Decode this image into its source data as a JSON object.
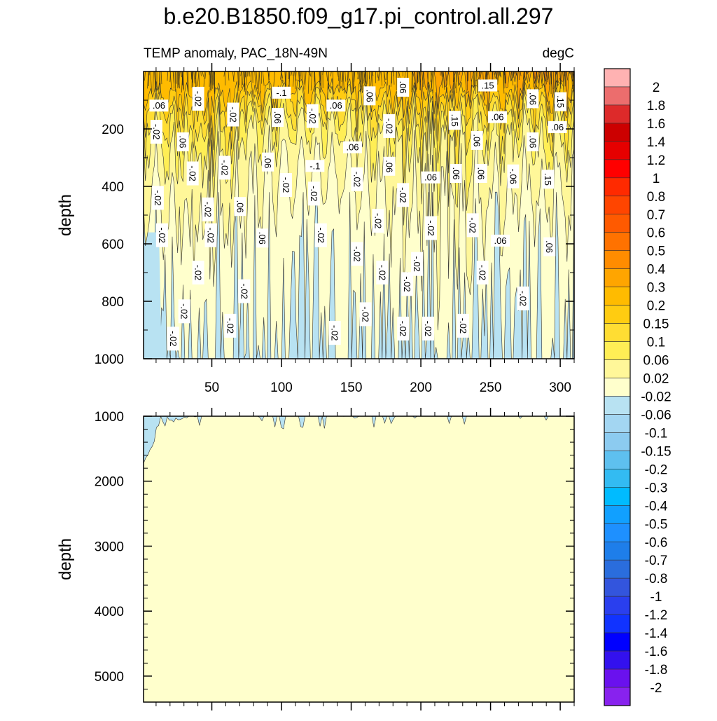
{
  "chart_data": {
    "type": "contour",
    "title": "b.e20.B1850.f09_g17.pi_control.all.297",
    "subtitle_left": "TEMP anomaly, PAC_18N-49N",
    "subtitle_right": "degC",
    "xlabel": "",
    "ylabel": "depth",
    "xlim": [
      1,
      310
    ],
    "x_ticks": [
      50,
      100,
      150,
      200,
      250,
      300
    ],
    "panels": [
      {
        "name": "upper",
        "ylim": [
          0,
          1000
        ],
        "y_ticks": [
          200,
          400,
          600,
          800,
          1000
        ],
        "y_inverted": true,
        "show_x_tick_labels": true
      },
      {
        "name": "lower",
        "ylim": [
          1000,
          5400
        ],
        "y_ticks": [
          1000,
          2000,
          3000,
          4000,
          5000
        ],
        "y_inverted": true,
        "show_x_tick_labels": false
      }
    ],
    "colorbar": {
      "levels": [
        "2",
        "1.8",
        "1.6",
        "1.4",
        "1.2",
        "1",
        "0.8",
        "0.7",
        "0.6",
        "0.5",
        "0.4",
        "0.3",
        "0.2",
        "0.15",
        "0.1",
        "0.06",
        "0.02",
        "-0.02",
        "-0.06",
        "-0.1",
        "-0.15",
        "-0.2",
        "-0.3",
        "-0.4",
        "-0.5",
        "-0.6",
        "-0.7",
        "-0.8",
        "-1",
        "-1.2",
        "-1.4",
        "-1.6",
        "-1.8",
        "-2"
      ],
      "colors": [
        "#ffb2b2",
        "#ec6d6d",
        "#dd2a2a",
        "#cc0000",
        "#e60000",
        "#ff0000",
        "#ff2a00",
        "#ff4500",
        "#ff5a00",
        "#ff7200",
        "#ff8c00",
        "#ffa500",
        "#ffbb00",
        "#ffcc11",
        "#ffdd33",
        "#ffee55",
        "#fff799",
        "#ffffcc",
        "#b8e2f2",
        "#a3d6f2",
        "#8ccbf0",
        "#5ec0ef",
        "#33bbf2",
        "#00bbff",
        "#11a0ff",
        "#1e90ff",
        "#1e7eea",
        "#2a6ddd",
        "#3355dd",
        "#2a3fee",
        "#1133ff",
        "#0000ff",
        "#3311ee",
        "#6a11ee",
        "#8822ee"
      ]
    },
    "contour_labels": [
      {
        "text": ".06",
        "x": 12,
        "depth": 120
      },
      {
        "text": "-.02",
        "x": 40,
        "depth": 95
      },
      {
        "text": "-.02",
        "x": 65,
        "depth": 150
      },
      {
        "text": "-.1",
        "x": 100,
        "depth": 75
      },
      {
        "text": ".06",
        "x": 97,
        "depth": 160
      },
      {
        "text": "-.02",
        "x": 122,
        "depth": 155
      },
      {
        "text": ".06",
        "x": 139,
        "depth": 120
      },
      {
        "text": ".06",
        "x": 163,
        "depth": 85
      },
      {
        "text": ".06",
        "x": 187,
        "depth": 55
      },
      {
        "text": ".15",
        "x": 248,
        "depth": 50
      },
      {
        "text": ".06",
        "x": 280,
        "depth": 95
      },
      {
        "text": ".15",
        "x": 300,
        "depth": 105
      },
      {
        "text": ".06",
        "x": 255,
        "depth": 160
      },
      {
        "text": ".15",
        "x": 224,
        "depth": 170
      },
      {
        "text": "-.02",
        "x": 177,
        "depth": 190
      },
      {
        "text": ".06",
        "x": 298,
        "depth": 195
      },
      {
        "text": "-.02",
        "x": 10,
        "depth": 210
      },
      {
        "text": ".06",
        "x": 29,
        "depth": 245
      },
      {
        "text": ".06",
        "x": 151,
        "depth": 265
      },
      {
        "text": ".06",
        "x": 240,
        "depth": 240
      },
      {
        "text": ".06",
        "x": 280,
        "depth": 245
      },
      {
        "text": "-.02",
        "x": 36,
        "depth": 355
      },
      {
        "text": "-.02",
        "x": 59,
        "depth": 335
      },
      {
        "text": ".06",
        "x": 90,
        "depth": 315
      },
      {
        "text": "-.1",
        "x": 124,
        "depth": 330
      },
      {
        "text": ".06",
        "x": 177,
        "depth": 330
      },
      {
        "text": "-.02",
        "x": 154,
        "depth": 375
      },
      {
        "text": ".06",
        "x": 207,
        "depth": 370
      },
      {
        "text": ".06",
        "x": 225,
        "depth": 355
      },
      {
        "text": ".06",
        "x": 243,
        "depth": 355
      },
      {
        "text": "-.06",
        "x": 266,
        "depth": 365
      },
      {
        "text": ".15",
        "x": 291,
        "depth": 375
      },
      {
        "text": "-.02",
        "x": 103,
        "depth": 395
      },
      {
        "text": "-.02",
        "x": 123,
        "depth": 425
      },
      {
        "text": "-.02",
        "x": 187,
        "depth": 430
      },
      {
        "text": "-.02",
        "x": 11,
        "depth": 440
      },
      {
        "text": "-.02",
        "x": 47,
        "depth": 480
      },
      {
        "text": ".06",
        "x": 70,
        "depth": 470
      },
      {
        "text": "-.02",
        "x": 169,
        "depth": 520
      },
      {
        "text": "-.02",
        "x": 207,
        "depth": 545
      },
      {
        "text": "-.02",
        "x": 237,
        "depth": 535
      },
      {
        "text": "-.02",
        "x": 14,
        "depth": 570
      },
      {
        "text": "-.02",
        "x": 49,
        "depth": 570
      },
      {
        "text": ".06",
        "x": 86,
        "depth": 580
      },
      {
        "text": "-.02",
        "x": 128,
        "depth": 570
      },
      {
        "text": ".06",
        "x": 257,
        "depth": 590
      },
      {
        "text": ".06",
        "x": 292,
        "depth": 610
      },
      {
        "text": "-.02",
        "x": 154,
        "depth": 635
      },
      {
        "text": "-.02",
        "x": 197,
        "depth": 670
      },
      {
        "text": "-.02",
        "x": 40,
        "depth": 700
      },
      {
        "text": "-.02",
        "x": 172,
        "depth": 700
      },
      {
        "text": "-.02",
        "x": 244,
        "depth": 700
      },
      {
        "text": "-.02",
        "x": 73,
        "depth": 765
      },
      {
        "text": "-.02",
        "x": 190,
        "depth": 740
      },
      {
        "text": "-.02",
        "x": 273,
        "depth": 790
      },
      {
        "text": "-.02",
        "x": 30,
        "depth": 835
      },
      {
        "text": "-.02",
        "x": 160,
        "depth": 845
      },
      {
        "text": "-.02",
        "x": 63,
        "depth": 885
      },
      {
        "text": "-.02",
        "x": 230,
        "depth": 885
      },
      {
        "text": "-.02",
        "x": 187,
        "depth": 895
      },
      {
        "text": "-.02",
        "x": 205,
        "depth": 895
      },
      {
        "text": "-.02",
        "x": 22,
        "depth": 930
      },
      {
        "text": "-.02",
        "x": 138,
        "depth": 910
      }
    ]
  }
}
